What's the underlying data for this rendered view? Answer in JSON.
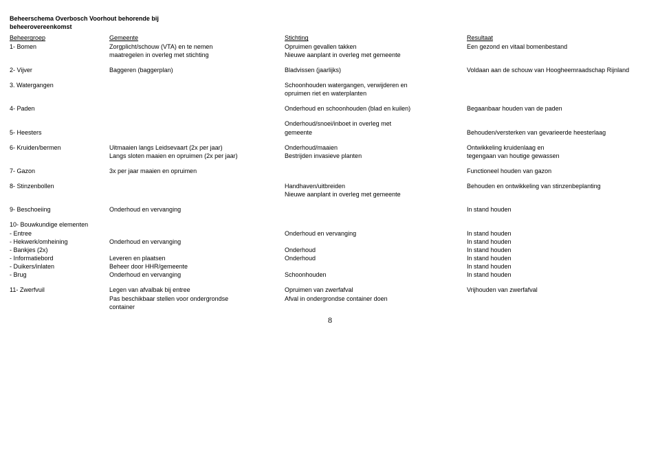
{
  "title_line1": "Beheerschema Overbosch Voorhout behorende bij",
  "title_line2": "beheerovereenkomst",
  "hdr": {
    "c1": "Beheergroep",
    "c2": "Gemeente",
    "c3": "Stichting",
    "c4": "Resultaat"
  },
  "r1": {
    "c1": "1- Bomen",
    "c2a": "Zorgplicht/schouw (VTA) en te nemen",
    "c2b": "maatregelen in overleg met stichting",
    "c3a": "Opruimen gevallen takken",
    "c3b": "Nieuwe aanplant in overleg met gemeente",
    "c4": "Een gezond en vitaal bomenbestand"
  },
  "r2": {
    "c1": "2- Vijver",
    "c2": "Baggeren (baggerplan)",
    "c3": "Bladvissen (jaarlijks)",
    "c4": "Voldaan aan de schouw van Hoogheemraadschap Rijnland"
  },
  "r3": {
    "c1": "3. Watergangen",
    "c3a": "Schoonhouden watergangen, verwijderen en",
    "c3b": "opruimen riet en waterplanten"
  },
  "r4": {
    "c1": "4- Paden",
    "c3": "Onderhoud en schoonhouden (blad en kuilen)",
    "c4": "Begaanbaar houden van de paden"
  },
  "r5": {
    "c1": "5- Heesters",
    "c3a": "Onderhoud/snoei/inboet in overleg met",
    "c3b": "gemeente",
    "c4": "Behouden/versterken van gevarieerde heesterlaag"
  },
  "r6": {
    "c1": "6- Kruiden/bermen",
    "c2a": "Uitmaaien langs Leidsevaart (2x per jaar)",
    "c2b": "Langs sloten maaien en opruimen (2x per jaar)",
    "c3a": "Onderhoud/maaien",
    "c3b": "Bestrijden invasieve planten",
    "c4a": "Ontwikkeling kruidenlaag en",
    "c4b": "tegengaan van houtige gewassen"
  },
  "r7": {
    "c1": "7- Gazon",
    "c2": "3x per jaar maaien en opruimen",
    "c4": "Functioneel houden van gazon"
  },
  "r8": {
    "c1": "8- Stinzenbollen",
    "c3a": "Handhaven/uitbreiden",
    "c3b": "Nieuwe aanplant in overleg met gemeente",
    "c4": "Behouden en ontwikkeling van stinzenbeplanting"
  },
  "r9": {
    "c1": "9- Beschoeiing",
    "c2": "Onderhoud en vervanging",
    "c4": "In stand houden"
  },
  "r10h": "10- Bouwkundige elementen",
  "r10a": {
    "c1": "- Entree",
    "c3": "Onderhoud en vervanging",
    "c4": "In stand houden"
  },
  "r10b": {
    "c1": "- Hekwerk/omheining",
    "c2": "Onderhoud en vervanging",
    "c4": "In stand houden"
  },
  "r10c": {
    "c1": "- Bankjes (2x)",
    "c3": "Onderhoud",
    "c4": "In stand houden"
  },
  "r10d": {
    "c1": "- Informatiebord",
    "c2": "Leveren en plaatsen",
    "c3": "Onderhoud",
    "c4": "In stand houden"
  },
  "r10e": {
    "c1": "- Duikers/inlaten",
    "c2": "Beheer door HHR/gemeente",
    "c4": "In stand houden"
  },
  "r10f": {
    "c1": "- Brug",
    "c2": "Onderhoud en vervanging",
    "c3": "Schoonhouden",
    "c4": "In stand houden"
  },
  "r11": {
    "c1": "11- Zwerfvuil",
    "c2a": "Legen van afvalbak bij entree",
    "c2b": "Pas beschikbaar stellen voor ondergrondse",
    "c2c": "container",
    "c3a": "Opruimen van zwerfafval",
    "c3b": "Afval in ondergrondse container doen",
    "c4": "Vrijhouden van zwerfafval"
  },
  "pagenum": "8"
}
